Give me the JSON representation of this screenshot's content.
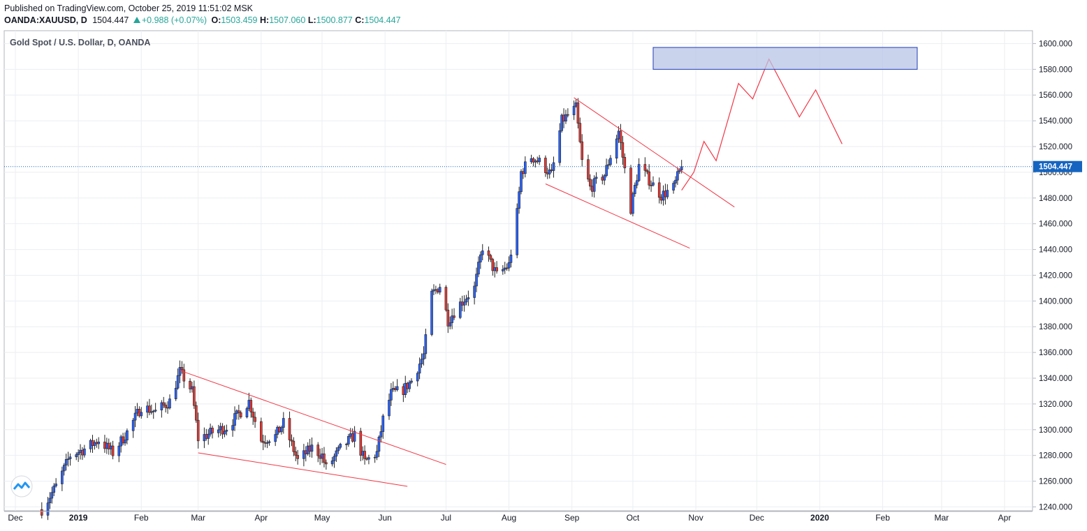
{
  "header": {
    "published": "Published on TradingView.com, October 25, 2019 11:51:02 MSK",
    "symbol": "OANDA:XAUUSD, D",
    "last": "1504.447",
    "change": "+0.988 (+0.07%)",
    "o_label": "O:",
    "o": "1503.459",
    "h_label": "H:",
    "h": "1507.060",
    "l_label": "L:",
    "l": "1500.877",
    "c_label": "C:",
    "c": "1504.447"
  },
  "colors": {
    "up": "#26a69a",
    "bull_candle": "#2962ff",
    "bear_candle": "#e53935",
    "trendline": "#f23645",
    "zone_fill": "#b8c4e6",
    "zone_stroke": "#1e3ab8",
    "price_line": "#1565c0"
  },
  "chart_data": {
    "type": "candlestick",
    "title": "Gold Spot / U.S. Dollar, D, OANDA",
    "y_ticks": [
      "1240.000",
      "1260.000",
      "1280.000",
      "1300.000",
      "1320.000",
      "1340.000",
      "1360.000",
      "1380.000",
      "1400.000",
      "1420.000",
      "1440.000",
      "1460.000",
      "1480.000",
      "1500.000",
      "1520.000",
      "1540.000",
      "1560.000",
      "1580.000",
      "1600.000"
    ],
    "ylim": [
      1237,
      1610
    ],
    "x_labels": [
      {
        "text": "Dec",
        "date": "2018-12-01",
        "bold": false
      },
      {
        "text": "2019",
        "date": "2019-01-01",
        "bold": true
      },
      {
        "text": "Feb",
        "date": "2019-02-01",
        "bold": false
      },
      {
        "text": "Mar",
        "date": "2019-03-01",
        "bold": false
      },
      {
        "text": "Apr",
        "date": "2019-04-01",
        "bold": false
      },
      {
        "text": "May",
        "date": "2019-05-01",
        "bold": false
      },
      {
        "text": "Jun",
        "date": "2019-06-01",
        "bold": false
      },
      {
        "text": "Jul",
        "date": "2019-07-01",
        "bold": false
      },
      {
        "text": "Aug",
        "date": "2019-08-01",
        "bold": false
      },
      {
        "text": "Sep",
        "date": "2019-09-01",
        "bold": false
      },
      {
        "text": "Oct",
        "date": "2019-10-01",
        "bold": false
      },
      {
        "text": "Nov",
        "date": "2019-11-01",
        "bold": false
      },
      {
        "text": "Dec",
        "date": "2019-12-01",
        "bold": false
      },
      {
        "text": "2020",
        "date": "2020-01-01",
        "bold": true
      },
      {
        "text": "Feb",
        "date": "2020-02-01",
        "bold": false
      },
      {
        "text": "Mar",
        "date": "2020-03-01",
        "bold": false
      },
      {
        "text": "Apr",
        "date": "2020-04-01",
        "bold": false
      }
    ],
    "last_price": 1504.447,
    "last_price_label": "1504.447",
    "path_close": [
      [
        "2018-12-14",
        1238
      ],
      [
        "2018-12-21",
        1256
      ],
      [
        "2018-12-28",
        1280
      ],
      [
        "2019-01-04",
        1285
      ],
      [
        "2019-01-11",
        1292
      ],
      [
        "2019-01-18",
        1282
      ],
      [
        "2019-01-25",
        1298
      ],
      [
        "2019-02-01",
        1318
      ],
      [
        "2019-02-08",
        1314
      ],
      [
        "2019-02-15",
        1322
      ],
      [
        "2019-02-20",
        1345
      ],
      [
        "2019-02-26",
        1330
      ],
      [
        "2019-03-01",
        1293
      ],
      [
        "2019-03-08",
        1298
      ],
      [
        "2019-03-15",
        1302
      ],
      [
        "2019-03-22",
        1314
      ],
      [
        "2019-03-26",
        1322
      ],
      [
        "2019-04-01",
        1292
      ],
      [
        "2019-04-08",
        1295
      ],
      [
        "2019-04-12",
        1305
      ],
      [
        "2019-04-19",
        1276
      ],
      [
        "2019-04-26",
        1286
      ],
      [
        "2019-05-01",
        1280
      ],
      [
        "2019-05-03",
        1270
      ],
      [
        "2019-05-10",
        1285
      ],
      [
        "2019-05-17",
        1296
      ],
      [
        "2019-05-22",
        1275
      ],
      [
        "2019-05-28",
        1282
      ],
      [
        "2019-05-31",
        1308
      ],
      [
        "2019-06-04",
        1328
      ],
      [
        "2019-06-10",
        1331
      ],
      [
        "2019-06-14",
        1338
      ],
      [
        "2019-06-20",
        1358
      ],
      [
        "2019-06-24",
        1405
      ],
      [
        "2019-06-28",
        1412
      ],
      [
        "2019-07-02",
        1385
      ],
      [
        "2019-07-08",
        1398
      ],
      [
        "2019-07-15",
        1410
      ],
      [
        "2019-07-19",
        1442
      ],
      [
        "2019-07-26",
        1420
      ],
      [
        "2019-08-01",
        1428
      ],
      [
        "2019-08-05",
        1468
      ],
      [
        "2019-08-07",
        1500
      ],
      [
        "2019-08-12",
        1512
      ],
      [
        "2019-08-16",
        1508
      ],
      [
        "2019-08-22",
        1498
      ],
      [
        "2019-08-27",
        1540
      ],
      [
        "2019-09-03",
        1550
      ],
      [
        "2019-09-06",
        1508
      ],
      [
        "2019-09-10",
        1488
      ],
      [
        "2019-09-17",
        1498
      ],
      [
        "2019-09-24",
        1532
      ],
      [
        "2019-09-30",
        1472
      ],
      [
        "2019-10-04",
        1505
      ],
      [
        "2019-10-10",
        1492
      ],
      [
        "2019-10-15",
        1482
      ],
      [
        "2019-10-21",
        1488
      ],
      [
        "2019-10-25",
        1504.447
      ]
    ],
    "annotations": {
      "trendlines": [
        {
          "x1": "2019-02-20",
          "y1": 1346,
          "x2": "2019-07-01",
          "y2": 1273
        },
        {
          "x1": "2019-03-01",
          "y1": 1282,
          "x2": "2019-06-12",
          "y2": 1256
        },
        {
          "x1": "2019-09-02",
          "y1": 1558,
          "x2": "2019-11-20",
          "y2": 1473
        },
        {
          "x1": "2019-08-19",
          "y1": 1491,
          "x2": "2019-10-29",
          "y2": 1441
        }
      ],
      "projection": [
        [
          "2019-10-25",
          1486
        ],
        [
          "2019-10-31",
          1500
        ],
        [
          "2019-11-05",
          1524
        ],
        [
          "2019-11-11",
          1509
        ],
        [
          "2019-11-22",
          1569
        ],
        [
          "2019-11-29",
          1557
        ],
        [
          "2019-12-07",
          1588
        ],
        [
          "2019-12-22",
          1543
        ],
        [
          "2019-12-30",
          1564
        ],
        [
          "2020-01-12",
          1522
        ]
      ],
      "target_zone": {
        "x1": "2019-10-11",
        "x2": "2020-02-18",
        "y1": 1580,
        "y2": 1597
      }
    }
  }
}
